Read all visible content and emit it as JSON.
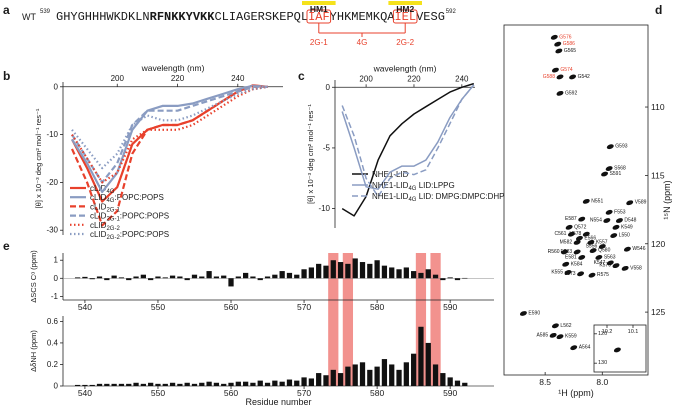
{
  "panel_letters": [
    "a",
    "b",
    "c",
    "d",
    "e"
  ],
  "sequence": {
    "label": "WT",
    "start": 539,
    "end": 592,
    "parts": [
      {
        "text": "GHYGHHHWKDKLN"
      },
      {
        "text": "RFNKKYVKK",
        "bold": true
      },
      {
        "text": "CLIAGERSKEPQL"
      },
      {
        "text": "IAF",
        "box": true
      },
      {
        "text": "YHKMEMKQA"
      },
      {
        "text": "IEL",
        "box": true
      },
      {
        "text": "VESG"
      }
    ],
    "motifs": [
      "HM1",
      "HM2"
    ],
    "motif_color": "#f5e21b",
    "mutants": [
      "2G-1",
      "4G",
      "2G-2"
    ],
    "mutant_color": "#e8412c"
  },
  "chart_data": [
    {
      "type": "line",
      "xlabel": "wavelength (nm)",
      "ylabel": "[θ] x 10⁻³ deg cm² mol⁻¹ res⁻¹",
      "xlim": [
        182,
        255
      ],
      "xticks": [
        200,
        220,
        240
      ],
      "ylim": [
        -31,
        1
      ],
      "yticks": [
        0,
        -10,
        -20,
        -30
      ],
      "line_width": 2.2,
      "x": [
        185,
        190,
        195,
        200,
        205,
        210,
        215,
        220,
        225,
        230,
        235,
        240,
        245,
        250
      ],
      "series": [
        {
          "name": "cLID4G",
          "color": "#e8412c",
          "dash": "solid",
          "values": [
            -11,
            -17,
            -24,
            -21,
            -12,
            -9,
            -8,
            -8,
            -7,
            -5,
            -3,
            -1,
            0.3,
            0
          ]
        },
        {
          "name": "cLID4G:POPC:POPS",
          "color": "#8a9cc2",
          "dash": "solid",
          "values": [
            -11,
            -16,
            -22,
            -18,
            -9,
            -5,
            -4,
            -4,
            -3.5,
            -2.5,
            -1.5,
            -0.5,
            0.2,
            0
          ]
        },
        {
          "name": "cLID2G-1",
          "color": "#e8412c",
          "dash": "dashed",
          "values": [
            -13,
            -20,
            -29,
            -26,
            -14,
            -9,
            -8,
            -8,
            -7,
            -5,
            -3,
            -1,
            0,
            0
          ]
        },
        {
          "name": "cLID2G-1:POPC:POPS",
          "color": "#8a9cc2",
          "dash": "dashed",
          "values": [
            -10,
            -15,
            -20,
            -16,
            -8,
            -5,
            -5,
            -5,
            -4,
            -3,
            -2,
            -1,
            0,
            0
          ]
        },
        {
          "name": "cLID2G-2",
          "color": "#e8412c",
          "dash": "dotted",
          "values": [
            -10,
            -15,
            -20,
            -18,
            -11,
            -9,
            -9,
            -9,
            -8,
            -6,
            -4,
            -2,
            -0.5,
            0
          ]
        },
        {
          "name": "cLID2G-2:POPC:POPS",
          "color": "#8a9cc2",
          "dash": "dotted",
          "values": [
            -9,
            -13,
            -17,
            -14,
            -8,
            -6,
            -7,
            -7,
            -6,
            -4.5,
            -3,
            -1.5,
            -0.5,
            0
          ]
        }
      ]
    },
    {
      "type": "line",
      "xlabel": "wavelength (nm)",
      "ylabel": "[θ] x 10⁻³ deg cm² mol⁻¹ res⁻¹",
      "xlim": [
        187,
        245.5
      ],
      "xticks": [
        200,
        220,
        240
      ],
      "ylim": [
        -11.6,
        0.6
      ],
      "yticks": [
        0,
        -5,
        -10
      ],
      "line_width": 1.5,
      "x": [
        190,
        195,
        200,
        205,
        210,
        215,
        220,
        225,
        230,
        235,
        240,
        245
      ],
      "series": [
        {
          "name": "NHE1-LID",
          "color": "#111111",
          "dash": "solid",
          "values": [
            -10,
            -10.6,
            -9,
            -6,
            -4,
            -3,
            -2.2,
            -1.6,
            -1,
            -0.4,
            0,
            0.3
          ]
        },
        {
          "name": "NHE1-LID4G LID:LPPG",
          "color": "#8a9cc2",
          "dash": "solid",
          "values": [
            -2,
            -5,
            -8.2,
            -8.4,
            -7,
            -6.5,
            -6.5,
            -6,
            -4.5,
            -2.5,
            -1,
            0.2
          ]
        },
        {
          "name": "NHE1-LID4G LID: DMPG:DMPC:DHPC",
          "color": "#8a9cc2",
          "dash": "dashed",
          "values": [
            -1.5,
            -4,
            -7.5,
            -9,
            -7.5,
            -7,
            -7.2,
            -6.8,
            -5,
            -3,
            -1,
            0.2
          ]
        }
      ]
    },
    {
      "type": "scatter",
      "xlabel": "¹H (ppm)",
      "ylabel": "¹⁵N (ppm)",
      "xlim": [
        8.86,
        7.6
      ],
      "xticks": [
        {
          "value": 8.5,
          "label": "8.5"
        },
        {
          "value": 8,
          "label": "8.0"
        }
      ],
      "ylim": [
        129.6,
        104
      ],
      "yticks": [
        110,
        115,
        120,
        125
      ],
      "series": [
        {
          "color": "#111111",
          "x": [
            8.38,
            8.26,
            8.37,
            7.93,
            7.94,
            7.98,
            8.14,
            7.76,
            7.94,
            8.18,
            7.96,
            7.85,
            8.29,
            7.88,
            8.27,
            8.14,
            7.9,
            8.2,
            8.22,
            8.1,
            8.0,
            7.78,
            8.33,
            8.22,
            8.08,
            8.03,
            7.93,
            8.32,
            7.88,
            8.18,
            8.19,
            8.09,
            8.3,
            7.8,
            8.69,
            8.41,
            8.43,
            8.37,
            8.25
          ],
          "y": [
            105.9,
            107.8,
            109.0,
            112.9,
            114.5,
            114.9,
            116.9,
            117.0,
            117.7,
            118.2,
            118.3,
            118.3,
            118.8,
            118.8,
            119.3,
            119.3,
            119.4,
            119.6,
            119.9,
            119.9,
            120.2,
            120.4,
            120.6,
            120.6,
            120.5,
            121.0,
            121.4,
            121.5,
            121.6,
            121.0,
            122.2,
            122.3,
            122.1,
            121.8,
            125.1,
            126.0,
            126.7,
            126.8,
            127.6
          ],
          "labels": [
            "G565",
            "G542",
            "G592",
            "G593",
            "S568",
            "S591",
            "N551",
            "V589",
            "F553",
            "E587",
            "N554",
            "D548",
            "Q572",
            "K549",
            "C561",
            "H578",
            "L550",
            "E566",
            "M582",
            "K557",
            "S556",
            "W546",
            "R560",
            "E583",
            "Q580",
            "S563",
            "K547",
            "K584",
            "K579",
            "E581",
            "L573",
            "R575",
            "K555",
            "V558",
            "E590",
            "L562",
            "A585",
            "K559",
            "A564"
          ]
        },
        {
          "color": "#e8412c",
          "x": [
            8.42,
            8.39,
            8.41,
            8.37
          ],
          "y": [
            104.9,
            105.4,
            107.3,
            107.8
          ],
          "labels": [
            "G576",
            "G586",
            "G574",
            "G588"
          ]
        }
      ]
    },
    {
      "type": "scatter",
      "xlim": [
        10.25,
        10.05
      ],
      "xticks": [
        10.2,
        10.1
      ],
      "ylim": [
        133,
        117
      ],
      "yticks": [
        120,
        130
      ],
      "series": [
        {
          "color": "#111111",
          "x": [
            10.16
          ],
          "y": [
            125.5
          ]
        }
      ]
    },
    {
      "type": "bar",
      "ylabel": "ΔSCS Cᵅ (ppm)",
      "ylim": [
        -1.2,
        1.4
      ],
      "yticks": [
        -1,
        0,
        1
      ],
      "xlim": [
        537,
        596
      ],
      "xticks": [
        540,
        550,
        560,
        570,
        580,
        590
      ],
      "color": "#111111",
      "highlight": [
        574,
        576,
        586,
        588
      ],
      "highlight_color": "#f07f7a",
      "x": [
        539,
        540,
        541,
        542,
        543,
        544,
        545,
        546,
        547,
        548,
        549,
        550,
        551,
        552,
        553,
        554,
        555,
        556,
        557,
        558,
        559,
        560,
        561,
        562,
        563,
        564,
        565,
        566,
        567,
        568,
        569,
        570,
        571,
        572,
        573,
        574,
        575,
        576,
        577,
        578,
        579,
        580,
        581,
        582,
        583,
        584,
        585,
        586,
        587,
        588,
        589,
        590,
        591,
        592
      ],
      "values": [
        0.05,
        0.08,
        -0.05,
        0.1,
        -0.1,
        0.15,
        0.05,
        -0.1,
        0.1,
        0.2,
        -0.1,
        0.1,
        0.05,
        0.15,
        0.1,
        -0.1,
        0.2,
        0.1,
        0.4,
        0.1,
        0.15,
        -0.45,
        0.1,
        0.3,
        0.1,
        -0.1,
        0.1,
        0.2,
        0.4,
        0.3,
        0.2,
        0.5,
        0.6,
        0.8,
        0.7,
        1.0,
        0.9,
        0.8,
        1.1,
        0.9,
        0.8,
        1.0,
        0.7,
        0.6,
        0.5,
        0.6,
        0.4,
        0.3,
        0.5,
        0.2,
        -0.1,
        0.05,
        -0.1,
        0.02
      ]
    },
    {
      "type": "bar",
      "ylabel": "ΔδNH (ppm)",
      "xlabel": "Residue number",
      "ylim": [
        0,
        0.65
      ],
      "yticks": [
        0,
        0.2,
        0.4,
        0.6
      ],
      "xlim": [
        537,
        596
      ],
      "xticks": [
        540,
        550,
        560,
        570,
        580,
        590
      ],
      "color": "#111111",
      "x": [
        539,
        540,
        541,
        542,
        543,
        544,
        545,
        546,
        547,
        548,
        549,
        550,
        551,
        552,
        553,
        554,
        555,
        556,
        557,
        558,
        559,
        560,
        561,
        562,
        563,
        564,
        565,
        566,
        567,
        568,
        569,
        570,
        571,
        572,
        573,
        574,
        575,
        576,
        577,
        578,
        579,
        580,
        581,
        582,
        583,
        584,
        585,
        586,
        587,
        588,
        589,
        590,
        591,
        592
      ],
      "values": [
        0.01,
        0.01,
        0.01,
        0.02,
        0.02,
        0.02,
        0.02,
        0.02,
        0.03,
        0.02,
        0.03,
        0.02,
        0.02,
        0.03,
        0.02,
        0.03,
        0.02,
        0.03,
        0.04,
        0.03,
        0.02,
        0.03,
        0.04,
        0.04,
        0.03,
        0.05,
        0.03,
        0.05,
        0.04,
        0.06,
        0.05,
        0.08,
        0.07,
        0.12,
        0.1,
        0.15,
        0.12,
        0.18,
        0.2,
        0.22,
        0.15,
        0.18,
        0.25,
        0.2,
        0.15,
        0.22,
        0.3,
        0.55,
        0.4,
        0.2,
        0.12,
        0.08,
        0.05,
        0.03
      ]
    }
  ]
}
